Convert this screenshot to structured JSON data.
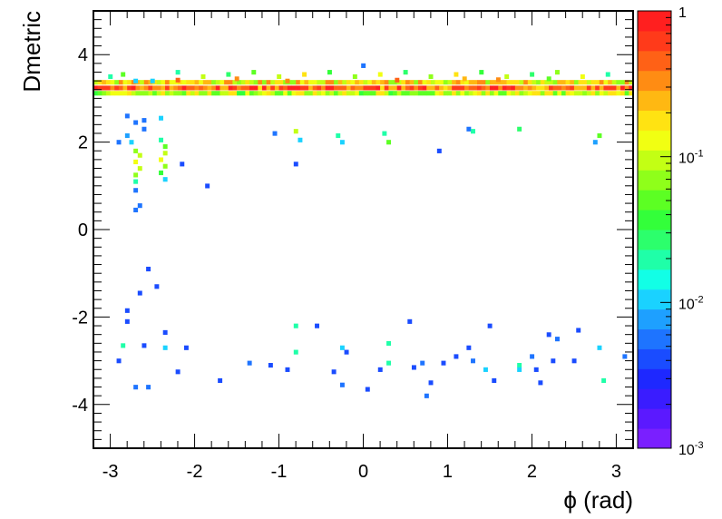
{
  "chart_data": {
    "type": "heatmap",
    "title": "",
    "xlabel": "ϕ (rad)",
    "ylabel": "Dmetric",
    "xlim": [
      -3.2,
      3.2
    ],
    "ylim": [
      -5,
      5
    ],
    "x_ticks": [
      -3,
      -2,
      -1,
      0,
      1,
      2,
      3
    ],
    "x_tick_labels": [
      "-3",
      "-2",
      "-1",
      "0",
      "1",
      "2",
      "3"
    ],
    "y_ticks": [
      -4,
      -2,
      0,
      2,
      4
    ],
    "y_tick_labels": [
      "-4",
      "-2",
      "0",
      "2",
      "4"
    ],
    "z_scale": "log",
    "zlim": [
      0.001,
      1
    ],
    "colorbar_labels": [
      {
        "base": "1",
        "exp": "",
        "value": 1
      },
      {
        "base": "10",
        "exp": "-1",
        "value": 0.1
      },
      {
        "base": "10",
        "exp": "-2",
        "value": 0.01
      },
      {
        "base": "10",
        "exp": "-3",
        "value": 0.001
      }
    ],
    "palette": [
      "#7a1fff",
      "#5b19ff",
      "#3a1cff",
      "#1e28ff",
      "#1a4cff",
      "#1e74ff",
      "#1ea0ff",
      "#1ad2ff",
      "#12ffe6",
      "#1fffa8",
      "#2cff6c",
      "#33ff3a",
      "#5cff23",
      "#8fff1a",
      "#c3ff14",
      "#f1ff12",
      "#ffe312",
      "#ffb812",
      "#ff8c13",
      "#ff6116",
      "#ff3a1a",
      "#ff1f1f"
    ],
    "band": {
      "y": [
        3.12,
        3.24,
        3.37
      ],
      "x_range": [
        -3.2,
        3.2
      ]
    },
    "points": [
      [
        -3.0,
        3.5,
        0.02
      ],
      [
        -2.85,
        3.55,
        0.05
      ],
      [
        -2.5,
        3.4,
        0.01
      ],
      [
        -2.2,
        3.6,
        0.02
      ],
      [
        -1.9,
        3.5,
        0.1
      ],
      [
        -1.6,
        3.55,
        0.03
      ],
      [
        -1.3,
        3.6,
        0.05
      ],
      [
        -1.0,
        3.5,
        0.1
      ],
      [
        -0.7,
        3.55,
        0.2
      ],
      [
        -0.4,
        3.6,
        0.04
      ],
      [
        -0.1,
        3.5,
        0.08
      ],
      [
        0.2,
        3.55,
        0.15
      ],
      [
        0.5,
        3.6,
        0.03
      ],
      [
        0.8,
        3.5,
        0.06
      ],
      [
        1.1,
        3.55,
        0.2
      ],
      [
        1.4,
        3.6,
        0.04
      ],
      [
        1.7,
        3.5,
        0.1
      ],
      [
        2.0,
        3.55,
        0.03
      ],
      [
        2.3,
        3.6,
        0.06
      ],
      [
        2.6,
        3.5,
        0.12
      ],
      [
        2.9,
        3.55,
        0.02
      ],
      [
        -2.7,
        3.4,
        0.01
      ],
      [
        -1.5,
        3.45,
        0.3
      ],
      [
        0.0,
        3.75,
        0.005
      ],
      [
        1.2,
        3.45,
        0.25
      ],
      [
        2.2,
        3.45,
        0.05
      ],
      [
        -2.2,
        3.42,
        0.4
      ],
      [
        -0.9,
        3.4,
        0.3
      ],
      [
        0.4,
        3.42,
        0.4
      ],
      [
        1.6,
        3.43,
        0.3
      ],
      [
        -2.8,
        2.6,
        0.005
      ],
      [
        -2.7,
        2.45,
        0.005
      ],
      [
        -2.6,
        2.5,
        0.005
      ],
      [
        -2.4,
        2.55,
        0.01
      ],
      [
        -2.6,
        2.3,
        0.005
      ],
      [
        -2.8,
        2.15,
        0.008
      ],
      [
        -2.75,
        2.0,
        0.01
      ],
      [
        -2.9,
        2.0,
        0.005
      ],
      [
        -2.4,
        2.05,
        0.02
      ],
      [
        -2.35,
        1.9,
        0.05
      ],
      [
        -2.7,
        1.8,
        0.08
      ],
      [
        -2.65,
        1.7,
        0.1
      ],
      [
        -2.7,
        1.55,
        0.15
      ],
      [
        -2.65,
        1.4,
        0.1
      ],
      [
        -2.7,
        1.25,
        0.06
      ],
      [
        -2.7,
        1.1,
        0.02
      ],
      [
        -2.35,
        1.75,
        0.1
      ],
      [
        -2.4,
        1.6,
        0.15
      ],
      [
        -2.35,
        1.45,
        0.08
      ],
      [
        -2.4,
        1.3,
        0.04
      ],
      [
        -2.35,
        1.15,
        0.01
      ],
      [
        -2.7,
        0.9,
        0.005
      ],
      [
        -2.65,
        0.55,
        0.005
      ],
      [
        -2.7,
        0.45,
        0.005
      ],
      [
        -2.15,
        1.5,
        0.004
      ],
      [
        -1.85,
        1.0,
        0.004
      ],
      [
        -1.05,
        2.2,
        0.005
      ],
      [
        -0.8,
        2.25,
        0.1
      ],
      [
        -0.75,
        2.05,
        0.01
      ],
      [
        -0.3,
        2.15,
        0.02
      ],
      [
        -0.25,
        2.0,
        0.01
      ],
      [
        0.25,
        2.2,
        0.02
      ],
      [
        0.3,
        2.0,
        0.05
      ],
      [
        0.9,
        1.8,
        0.004
      ],
      [
        1.25,
        2.3,
        0.005
      ],
      [
        1.3,
        2.25,
        0.02
      ],
      [
        1.85,
        2.3,
        0.03
      ],
      [
        2.8,
        2.15,
        0.05
      ],
      [
        2.75,
        2.0,
        0.008
      ],
      [
        -0.8,
        1.5,
        0.004
      ],
      [
        -2.55,
        -0.9,
        0.004
      ],
      [
        -2.65,
        -1.45,
        0.004
      ],
      [
        -2.45,
        -1.3,
        0.004
      ],
      [
        -2.8,
        -1.85,
        0.004
      ],
      [
        -2.8,
        -2.1,
        0.004
      ],
      [
        -2.35,
        -2.35,
        0.004
      ],
      [
        -2.85,
        -2.65,
        0.02
      ],
      [
        -2.6,
        -2.65,
        0.004
      ],
      [
        -2.35,
        -2.7,
        0.01
      ],
      [
        -2.1,
        -2.7,
        0.004
      ],
      [
        -2.2,
        -3.25,
        0.004
      ],
      [
        -2.9,
        -3.0,
        0.004
      ],
      [
        -2.7,
        -3.6,
        0.005
      ],
      [
        -2.55,
        -3.6,
        0.005
      ],
      [
        -1.7,
        -3.45,
        0.004
      ],
      [
        -1.35,
        -3.05,
        0.005
      ],
      [
        -1.1,
        -3.1,
        0.004
      ],
      [
        -0.9,
        -3.2,
        0.004
      ],
      [
        -0.8,
        -2.8,
        0.02
      ],
      [
        -0.8,
        -2.2,
        0.02
      ],
      [
        -0.55,
        -2.2,
        0.004
      ],
      [
        -0.25,
        -2.7,
        0.01
      ],
      [
        -0.2,
        -2.8,
        0.004
      ],
      [
        -0.35,
        -3.25,
        0.004
      ],
      [
        -0.25,
        -3.55,
        0.005
      ],
      [
        0.05,
        -3.65,
        0.004
      ],
      [
        0.2,
        -3.2,
        0.004
      ],
      [
        0.3,
        -3.05,
        0.02
      ],
      [
        0.3,
        -2.6,
        0.02
      ],
      [
        0.55,
        -2.1,
        0.004
      ],
      [
        0.6,
        -3.15,
        0.004
      ],
      [
        0.7,
        -3.05,
        0.005
      ],
      [
        0.8,
        -3.5,
        0.004
      ],
      [
        0.75,
        -3.8,
        0.005
      ],
      [
        0.95,
        -3.05,
        0.004
      ],
      [
        1.1,
        -2.9,
        0.004
      ],
      [
        1.25,
        -2.7,
        0.004
      ],
      [
        1.3,
        -3.0,
        0.005
      ],
      [
        1.45,
        -3.2,
        0.01
      ],
      [
        1.5,
        -2.2,
        0.004
      ],
      [
        1.55,
        -3.45,
        0.004
      ],
      [
        1.85,
        -3.1,
        0.02
      ],
      [
        1.85,
        -3.2,
        0.01
      ],
      [
        2.0,
        -2.9,
        0.005
      ],
      [
        2.05,
        -3.2,
        0.004
      ],
      [
        2.1,
        -3.5,
        0.004
      ],
      [
        2.2,
        -2.4,
        0.004
      ],
      [
        2.25,
        -3.0,
        0.004
      ],
      [
        2.3,
        -2.5,
        0.005
      ],
      [
        2.5,
        -3.0,
        0.004
      ],
      [
        2.55,
        -2.3,
        0.004
      ],
      [
        2.8,
        -2.7,
        0.01
      ],
      [
        2.85,
        -3.45,
        0.02
      ],
      [
        3.1,
        -2.9,
        0.005
      ]
    ]
  }
}
